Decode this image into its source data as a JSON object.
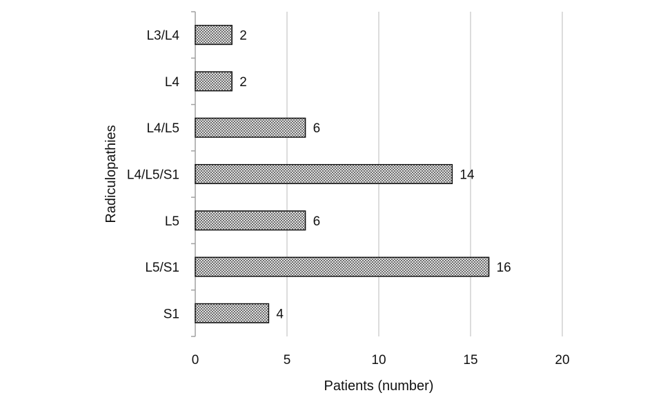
{
  "chart_data": {
    "type": "bar",
    "orientation": "horizontal",
    "categories": [
      "L3/L4",
      "L4",
      "L4/L5",
      "L4/L5/S1",
      "L5",
      "L5/S1",
      "S1"
    ],
    "values": [
      2,
      2,
      6,
      14,
      6,
      16,
      4
    ],
    "data_labels": [
      "2",
      "2",
      "6",
      "14",
      "6",
      "16",
      "4"
    ],
    "xlabel": "Patients (number)",
    "ylabel": "Radiculopathies",
    "xlim": [
      0,
      20
    ],
    "xticks": [
      0,
      5,
      10,
      15,
      20
    ],
    "xtick_labels": [
      "0",
      "5",
      "10",
      "15",
      "20"
    ],
    "grid": "vertical",
    "legend": "none",
    "bar_fill": "crosshatch",
    "colors": {
      "bar_fill": "#ffffff",
      "bar_hatch": "#555555",
      "bar_border": "#111111",
      "grid": "#d0d0d0",
      "axis": "#a0a0a0"
    }
  }
}
